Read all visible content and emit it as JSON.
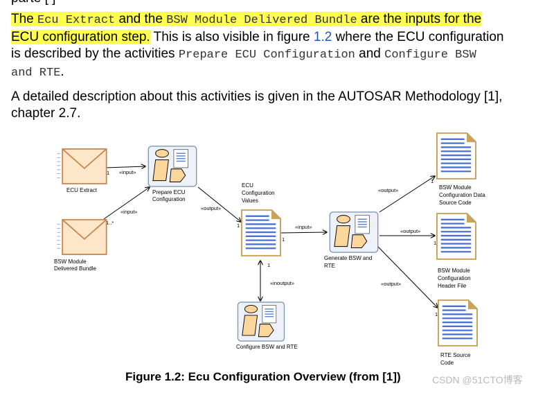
{
  "top_cut_text": "parte [ ]",
  "paragraph1": {
    "w_the": "The ",
    "m_ecu_extract": "Ecu Extract",
    "w_and_the": " and the ",
    "m_bsw_bundle": "BSW Module Delivered Bundle",
    "w_are_inputs": " are the inputs for the",
    "w_ecu_step": "ECU configuration step.",
    "w_also_visible": " This is also visible in figure ",
    "link_fig": "1.2",
    "w_where": " where the ECU configuration",
    "w_described": "is described by the activities ",
    "m_prepare": "Prepare ECU Configuration",
    "w_and": " and ",
    "m_configure": "Configure BSW",
    "m_and_rte": "and RTE",
    "w_period": "."
  },
  "paragraph2": {
    "line1": "A detailed description about this activities is given in the AUTOSAR Methodology [1],",
    "line2": "chapter 2.7."
  },
  "diagram": {
    "nodes": {
      "ecu_extract": "ECU Extract",
      "bsw_bundle": [
        "BSW Module",
        "Delivered Bundle"
      ],
      "prepare": [
        "Prepare ECU",
        "Configuration"
      ],
      "ecu_values": [
        "ECU",
        "Configuration",
        "Values"
      ],
      "generate": [
        "Generate BSW and",
        "RTE"
      ],
      "configure": "Configure BSW and RTE",
      "data_src": [
        "BSW Module",
        "Configuration Data",
        "Source Code"
      ],
      "header": [
        "BSW Module",
        "Configuration",
        "Header File"
      ],
      "rte_src": [
        "RTE Source",
        "Code"
      ]
    },
    "stereotypes": {
      "input": "«input»",
      "output": "«output»",
      "inoutput": "«inoutput»"
    },
    "multiplicity": {
      "one": "1",
      "one_many": "1..*"
    }
  },
  "caption": "Figure 1.2: Ecu Configuration Overview (from [1])",
  "watermark": "CSDN @51CTO博客"
}
